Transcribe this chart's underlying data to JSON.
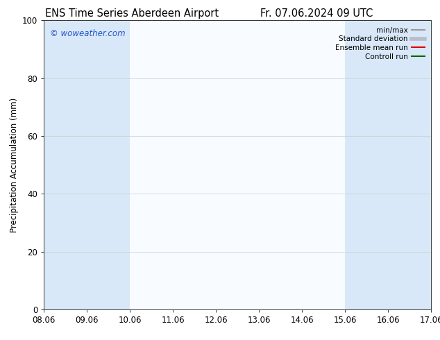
{
  "title_left": "ENS Time Series Aberdeen Airport",
  "title_right": "Fr. 07.06.2024 09 UTC",
  "ylabel": "Precipitation Accumulation (mm)",
  "xlim_labels": [
    "08.06",
    "09.06",
    "10.06",
    "11.06",
    "12.06",
    "13.06",
    "14.06",
    "15.06",
    "16.06",
    "17.06"
  ],
  "ylim": [
    0,
    100
  ],
  "yticks": [
    0,
    20,
    40,
    60,
    80,
    100
  ],
  "shaded_ranges": [
    [
      0,
      1
    ],
    [
      1,
      2
    ],
    [
      7,
      8
    ],
    [
      8,
      9
    ],
    [
      9,
      9.5
    ]
  ],
  "shaded_color": "#d8e8f8",
  "bg_color": "#ffffff",
  "plot_bg_color": "#f8fbff",
  "watermark": "© woweather.com",
  "watermark_color": "#2255cc",
  "legend_entries": [
    {
      "label": "min/max",
      "color": "#999999",
      "lw": 1.5
    },
    {
      "label": "Standard deviation",
      "color": "#bbbbcc",
      "lw": 4
    },
    {
      "label": "Ensemble mean run",
      "color": "#dd0000",
      "lw": 1.5
    },
    {
      "label": "Controll run",
      "color": "#006600",
      "lw": 1.5
    }
  ],
  "title_fontsize": 10.5,
  "tick_fontsize": 8.5,
  "ylabel_fontsize": 8.5,
  "watermark_fontsize": 8.5
}
